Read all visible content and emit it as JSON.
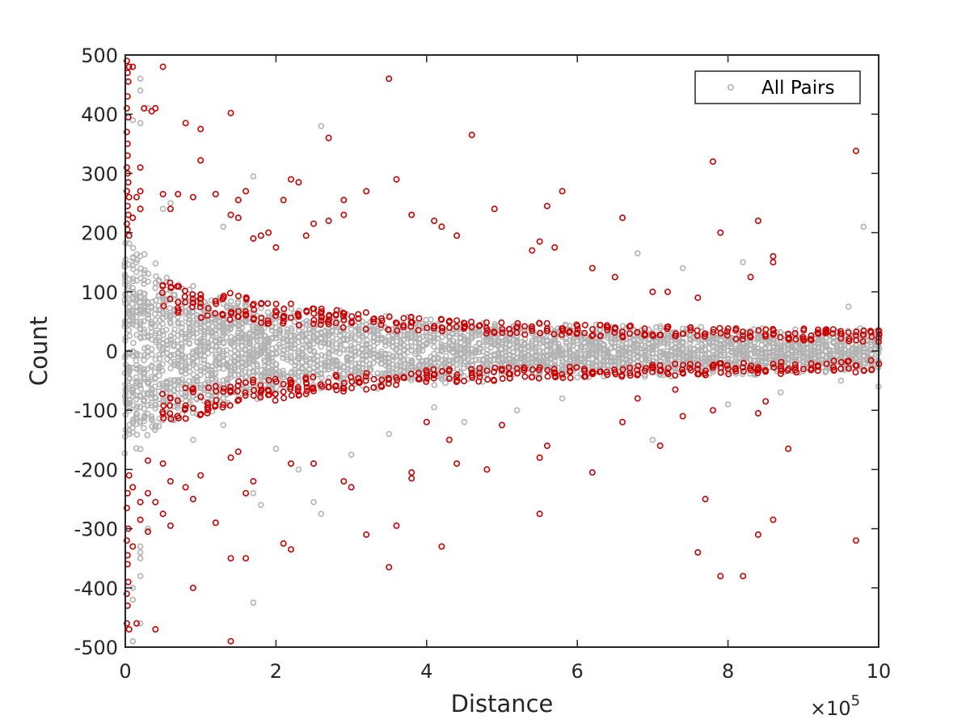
{
  "chart_data": {
    "type": "scatter",
    "title": "",
    "xlabel": "Distance",
    "ylabel": "Count",
    "xlim": [
      0,
      1000000
    ],
    "ylim": [
      -500,
      500
    ],
    "x_tick_labels": [
      "0",
      "2",
      "4",
      "6",
      "8",
      "10"
    ],
    "x_multiplier_base": "×10",
    "x_multiplier_exponent": "5",
    "y_tick_labels": [
      "500",
      "400",
      "300",
      "200",
      "100",
      "0",
      "-100",
      "-200",
      "-300",
      "-400",
      "-500"
    ],
    "grid": false,
    "legend_position": "top-right",
    "marker": "open-circle",
    "series": [
      {
        "name": "All Pairs",
        "color": "#b3b3b3",
        "band_envelope": {
          "x": [
            0,
            10000,
            20000,
            50000,
            100000,
            150000,
            200000,
            300000,
            400000,
            500000,
            600000,
            700000,
            800000,
            900000,
            1000000
          ],
          "halfwidth": [
            215,
            195,
            180,
            150,
            115,
            95,
            82,
            68,
            60,
            52,
            48,
            45,
            42,
            40,
            38
          ]
        },
        "outliers": [
          [
            20000,
            460
          ],
          [
            20000,
            440
          ],
          [
            10000,
            390
          ],
          [
            30000,
            410
          ],
          [
            20000,
            385
          ],
          [
            260000,
            380
          ],
          [
            170000,
            295
          ],
          [
            60000,
            250
          ],
          [
            50000,
            240
          ],
          [
            130000,
            210
          ],
          [
            380000,
            230
          ],
          [
            680000,
            165
          ],
          [
            740000,
            140
          ],
          [
            820000,
            150
          ],
          [
            960000,
            75
          ],
          [
            980000,
            210
          ],
          [
            20000,
            -330
          ],
          [
            20000,
            -340
          ],
          [
            20000,
            -380
          ],
          [
            10000,
            -400
          ],
          [
            10000,
            -420
          ],
          [
            10000,
            -490
          ],
          [
            20000,
            -460
          ],
          [
            20000,
            -350
          ],
          [
            30000,
            -300
          ],
          [
            170000,
            -425
          ],
          [
            260000,
            -275
          ],
          [
            250000,
            -255
          ],
          [
            200000,
            -165
          ],
          [
            170000,
            -240
          ],
          [
            180000,
            -260
          ],
          [
            350000,
            -140
          ],
          [
            450000,
            -120
          ],
          [
            700000,
            -150
          ],
          [
            800000,
            -90
          ],
          [
            870000,
            -70
          ],
          [
            950000,
            -50
          ],
          [
            1000000,
            -60
          ],
          [
            580000,
            -80
          ],
          [
            520000,
            -100
          ],
          [
            300000,
            -175
          ],
          [
            90000,
            -150
          ],
          [
            130000,
            -125
          ],
          [
            230000,
            -200
          ],
          [
            410000,
            -95
          ]
        ]
      },
      {
        "color": "#cc0000",
        "points": [
          [
            2000,
            490
          ],
          [
            5000,
            480
          ],
          [
            10000,
            480
          ],
          [
            3000,
            470
          ],
          [
            4000,
            455
          ],
          [
            3000,
            430
          ],
          [
            2000,
            410
          ],
          [
            4000,
            395
          ],
          [
            2000,
            370
          ],
          [
            3000,
            350
          ],
          [
            3000,
            330
          ],
          [
            2000,
            310
          ],
          [
            3000,
            300
          ],
          [
            4000,
            285
          ],
          [
            2000,
            270
          ],
          [
            5000,
            260
          ],
          [
            3000,
            245
          ],
          [
            4000,
            230
          ],
          [
            2000,
            215
          ],
          [
            3000,
            205
          ],
          [
            5000,
            195
          ],
          [
            20000,
            310
          ],
          [
            20000,
            270
          ],
          [
            15000,
            260
          ],
          [
            20000,
            240
          ],
          [
            10000,
            225
          ],
          [
            25000,
            410
          ],
          [
            40000,
            410
          ],
          [
            35000,
            405
          ],
          [
            50000,
            480
          ],
          [
            80000,
            385
          ],
          [
            100000,
            375
          ],
          [
            140000,
            402
          ],
          [
            100000,
            322
          ],
          [
            120000,
            265
          ],
          [
            90000,
            260
          ],
          [
            70000,
            265
          ],
          [
            50000,
            265
          ],
          [
            60000,
            240
          ],
          [
            150000,
            255
          ],
          [
            160000,
            270
          ],
          [
            220000,
            290
          ],
          [
            230000,
            285
          ],
          [
            210000,
            255
          ],
          [
            250000,
            215
          ],
          [
            290000,
            255
          ],
          [
            320000,
            270
          ],
          [
            360000,
            290
          ],
          [
            350000,
            460
          ],
          [
            270000,
            360
          ],
          [
            460000,
            365
          ],
          [
            490000,
            240
          ],
          [
            560000,
            245
          ],
          [
            580000,
            270
          ],
          [
            660000,
            225
          ],
          [
            780000,
            320
          ],
          [
            840000,
            220
          ],
          [
            970000,
            338
          ],
          [
            790000,
            200
          ],
          [
            440000,
            195
          ],
          [
            410000,
            220
          ],
          [
            380000,
            230
          ],
          [
            420000,
            210
          ],
          [
            540000,
            170
          ],
          [
            550000,
            185
          ],
          [
            570000,
            175
          ],
          [
            620000,
            140
          ],
          [
            650000,
            125
          ],
          [
            700000,
            100
          ],
          [
            720000,
            100
          ],
          [
            760000,
            90
          ],
          [
            860000,
            160
          ],
          [
            860000,
            150
          ],
          [
            830000,
            125
          ],
          [
            150000,
            225
          ],
          [
            140000,
            230
          ],
          [
            180000,
            195
          ],
          [
            190000,
            200
          ],
          [
            170000,
            190
          ],
          [
            200000,
            175
          ],
          [
            240000,
            195
          ],
          [
            270000,
            220
          ],
          [
            290000,
            230
          ],
          [
            30000,
            -240
          ],
          [
            20000,
            -255
          ],
          [
            10000,
            -230
          ],
          [
            5000,
            -210
          ],
          [
            3000,
            -240
          ],
          [
            2000,
            -265
          ],
          [
            4000,
            -300
          ],
          [
            2000,
            -320
          ],
          [
            3000,
            -345
          ],
          [
            3000,
            -360
          ],
          [
            4000,
            -390
          ],
          [
            2000,
            -410
          ],
          [
            3000,
            -430
          ],
          [
            2000,
            -460
          ],
          [
            5000,
            -470
          ],
          [
            15000,
            -460
          ],
          [
            40000,
            -470
          ],
          [
            10000,
            -330
          ],
          [
            20000,
            -285
          ],
          [
            30000,
            -305
          ],
          [
            40000,
            -255
          ],
          [
            50000,
            -275
          ],
          [
            60000,
            -295
          ],
          [
            90000,
            -400
          ],
          [
            120000,
            -290
          ],
          [
            140000,
            -350
          ],
          [
            160000,
            -350
          ],
          [
            140000,
            -490
          ],
          [
            210000,
            -325
          ],
          [
            220000,
            -335
          ],
          [
            320000,
            -310
          ],
          [
            350000,
            -365
          ],
          [
            360000,
            -295
          ],
          [
            420000,
            -330
          ],
          [
            550000,
            -275
          ],
          [
            620000,
            -205
          ],
          [
            760000,
            -340
          ],
          [
            770000,
            -250
          ],
          [
            790000,
            -380
          ],
          [
            820000,
            -380
          ],
          [
            840000,
            -310
          ],
          [
            860000,
            -285
          ],
          [
            880000,
            -165
          ],
          [
            970000,
            -320
          ],
          [
            480000,
            -200
          ],
          [
            440000,
            -190
          ],
          [
            380000,
            -205
          ],
          [
            380000,
            -215
          ],
          [
            290000,
            -220
          ],
          [
            300000,
            -230
          ],
          [
            250000,
            -190
          ],
          [
            220000,
            -190
          ],
          [
            160000,
            -240
          ],
          [
            170000,
            -220
          ],
          [
            60000,
            -220
          ],
          [
            80000,
            -230
          ],
          [
            90000,
            -250
          ],
          [
            50000,
            -190
          ],
          [
            30000,
            -185
          ],
          [
            100000,
            -210
          ],
          [
            150000,
            -170
          ],
          [
            140000,
            -180
          ],
          [
            400000,
            -120
          ],
          [
            430000,
            -150
          ],
          [
            500000,
            -125
          ],
          [
            560000,
            -160
          ],
          [
            550000,
            -180
          ],
          [
            660000,
            -120
          ],
          [
            730000,
            -65
          ],
          [
            710000,
            -160
          ],
          [
            740000,
            -110
          ],
          [
            780000,
            -100
          ],
          [
            840000,
            -105
          ],
          [
            850000,
            -85
          ],
          [
            680000,
            -80
          ]
        ],
        "band_envelope": {
          "x": [
            50000,
            100000,
            150000,
            200000,
            250000,
            300000,
            400000,
            500000,
            600000,
            700000,
            800000,
            900000,
            1000000
          ],
          "inner_value": [
            70,
            55,
            50,
            45,
            42,
            38,
            30,
            28,
            25,
            22,
            20,
            18,
            15
          ],
          "outer_value": [
            130,
            110,
            95,
            85,
            75,
            68,
            55,
            50,
            45,
            42,
            40,
            38,
            35
          ]
        }
      }
    ]
  }
}
